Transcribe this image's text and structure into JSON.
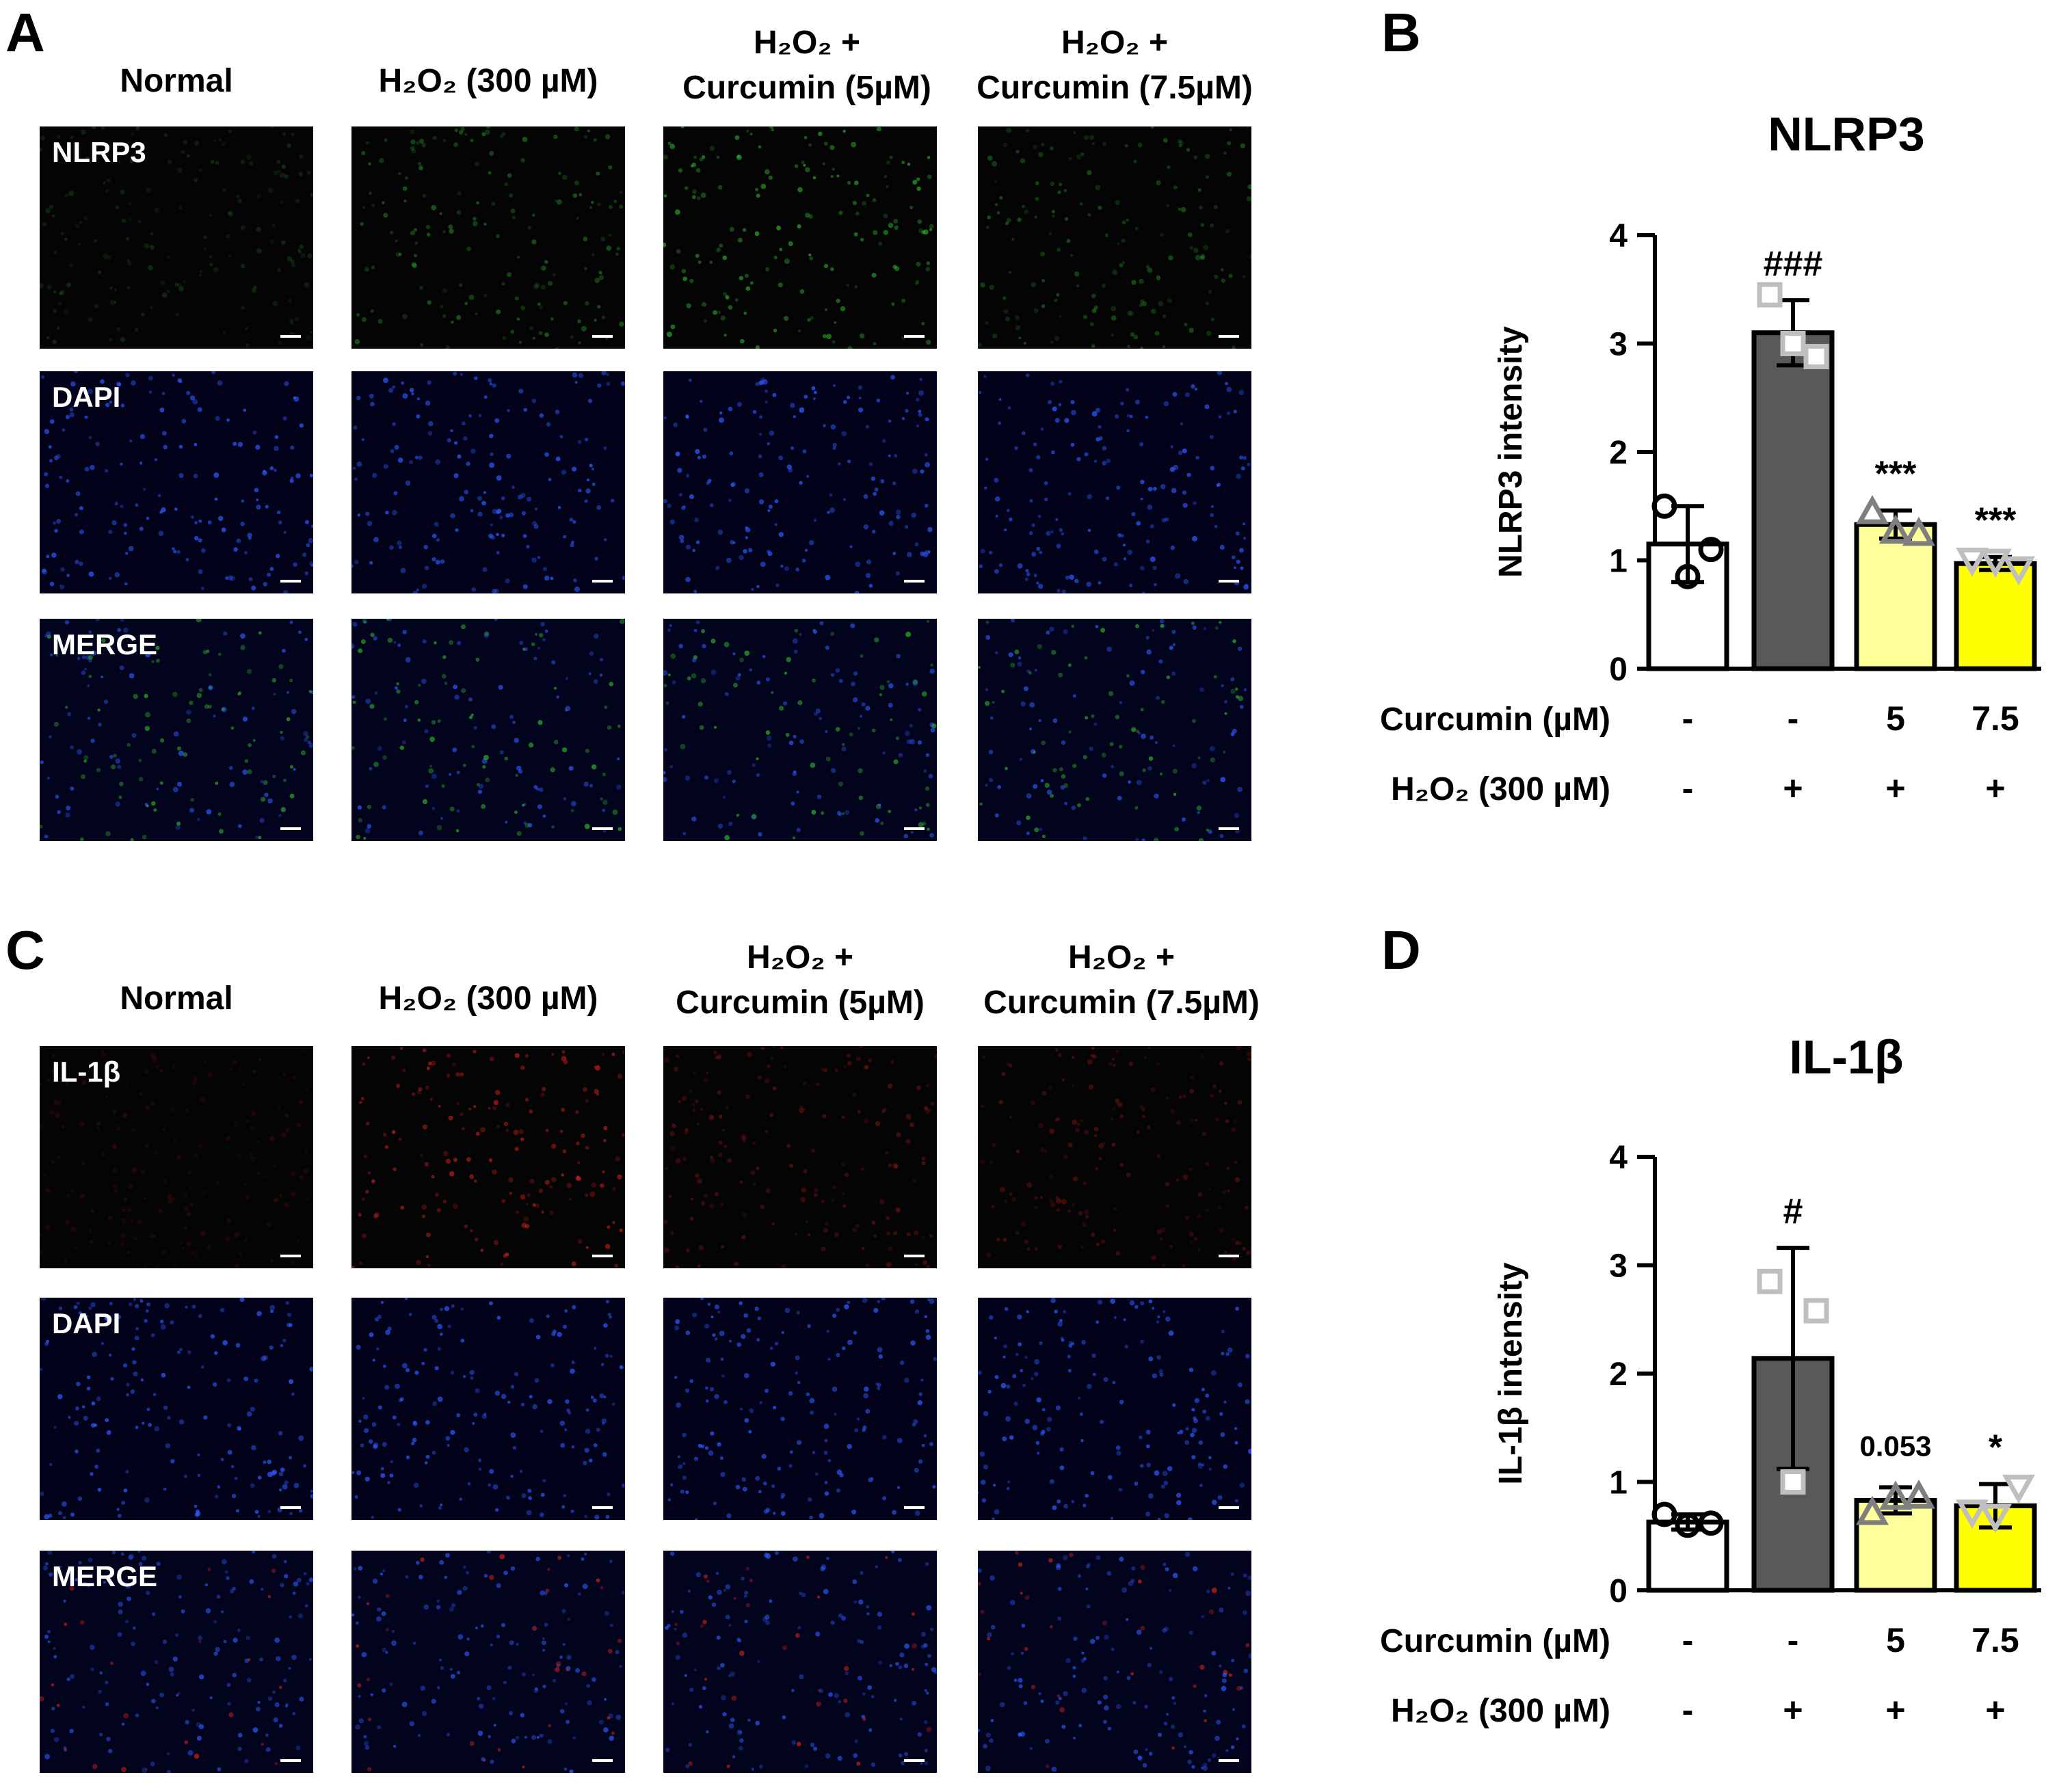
{
  "panel_letters": [
    "A",
    "B",
    "C",
    "D"
  ],
  "panels": [
    {
      "id": "A",
      "stain_color": "#2fb52f",
      "columns": [
        {
          "line1": "Normal",
          "line2": ""
        },
        {
          "line1": "H₂O₂ (300 µM)",
          "line2": ""
        },
        {
          "line1": "H₂O₂ +",
          "line2": "Curcumin (5µM)"
        },
        {
          "line1": "H₂O₂ +",
          "line2": "Curcumin (7.5µM)"
        }
      ],
      "rows": [
        "NLRP3",
        "DAPI",
        "MERGE"
      ],
      "intensity": [
        0.25,
        0.6,
        0.95,
        0.55
      ]
    },
    {
      "id": "C",
      "stain_color": "#d2231e",
      "columns": [
        {
          "line1": "Normal",
          "line2": ""
        },
        {
          "line1": "H₂O₂ (300 µM)",
          "line2": ""
        },
        {
          "line1": "H₂O₂ +",
          "line2": "Curcumin (5µM)"
        },
        {
          "line1": "H₂O₂ +",
          "line2": "Curcumin (7.5µM)"
        }
      ],
      "rows": [
        "IL-1β",
        "DAPI",
        "MERGE"
      ],
      "intensity": [
        0.15,
        0.9,
        0.45,
        0.4
      ]
    }
  ],
  "chart_data": [
    {
      "panel": "B",
      "type": "bar",
      "title": "NLRP3",
      "ylabel": "NLRP3 intensity",
      "ylim": [
        0,
        4
      ],
      "yticks": [
        0,
        1,
        2,
        3,
        4
      ],
      "row_labels": [
        "Curcumin (µM)",
        "H₂O₂ (300 µM)"
      ],
      "curcumin": [
        "-",
        "-",
        "5",
        "7.5"
      ],
      "h2o2": [
        "-",
        "+",
        "+",
        "+"
      ],
      "values": [
        1.15,
        3.1,
        1.33,
        0.97
      ],
      "errors": [
        0.35,
        0.3,
        0.13,
        0.06
      ],
      "points": [
        [
          1.5,
          1.1,
          0.85
        ],
        [
          3.45,
          2.88,
          3.0
        ],
        [
          1.45,
          1.25,
          1.27
        ],
        [
          1.0,
          0.92,
          0.99
        ]
      ],
      "markers": [
        "circle",
        "square",
        "triangle",
        "triangle-down"
      ],
      "annotations": [
        "",
        "###",
        "***",
        "***"
      ],
      "fills": [
        "#ffffff",
        "#595959",
        "#ffff99",
        "#ffff00"
      ],
      "marker_colors": [
        "#000000",
        "#bfbfbf",
        "#7f7f7f",
        "#bfbfbf"
      ]
    },
    {
      "panel": "D",
      "type": "bar",
      "title": "IL-1β",
      "ylabel": "IL-1β intensity",
      "ylim": [
        0,
        4
      ],
      "yticks": [
        0,
        1,
        2,
        3,
        4
      ],
      "row_labels": [
        "Curcumin (µM)",
        "H₂O₂ (300 µM)"
      ],
      "curcumin": [
        "-",
        "-",
        "5",
        "7.5"
      ],
      "h2o2": [
        "-",
        "+",
        "+",
        "+"
      ],
      "values": [
        0.63,
        2.14,
        0.83,
        0.78
      ],
      "errors": [
        0.07,
        1.02,
        0.12,
        0.2
      ],
      "points": [
        [
          0.7,
          0.62,
          0.6
        ],
        [
          2.85,
          2.58,
          1.0
        ],
        [
          0.72,
          0.87,
          0.86
        ],
        [
          0.72,
          0.95,
          0.68
        ]
      ],
      "markers": [
        "circle",
        "square",
        "triangle",
        "triangle-down"
      ],
      "annotations": [
        "",
        "#",
        "0.053",
        "*"
      ],
      "fills": [
        "#ffffff",
        "#595959",
        "#ffff99",
        "#ffff00"
      ],
      "marker_colors": [
        "#000000",
        "#bfbfbf",
        "#7f7f7f",
        "#bfbfbf"
      ]
    }
  ]
}
